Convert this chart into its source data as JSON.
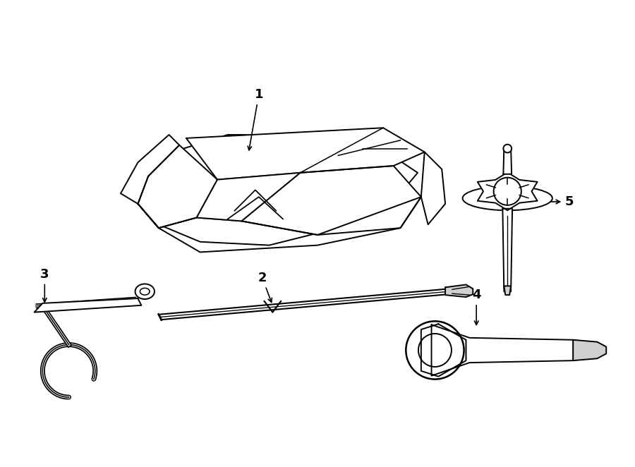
{
  "bg_color": "#ffffff",
  "line_color": "#000000",
  "line_width": 1.4,
  "fig_width": 9.0,
  "fig_height": 6.62,
  "dpi": 100
}
